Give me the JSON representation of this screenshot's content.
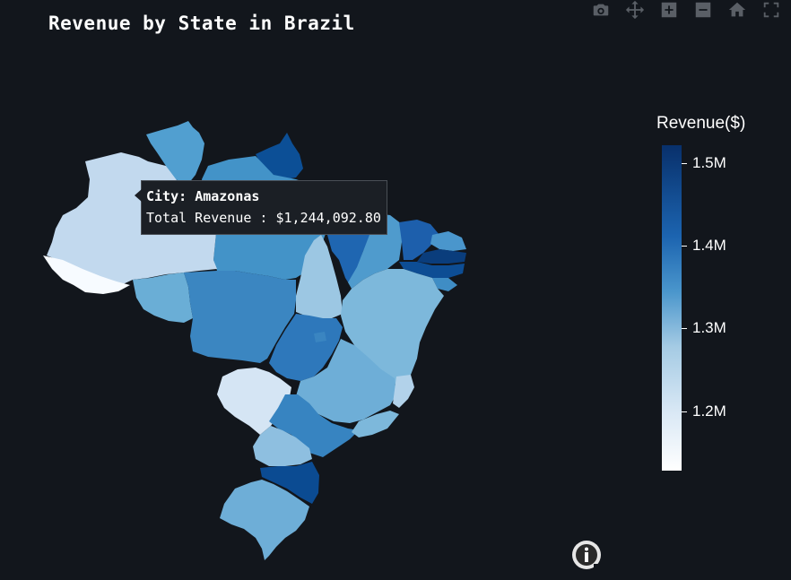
{
  "title": "Revenue by State in Brazil",
  "tooltip": {
    "line1_key": "City: ",
    "line1_value": "Amazonas",
    "line2_key": "Total Revenue : ",
    "line2_value": "$1,244,092.80"
  },
  "colorbar": {
    "title": "Revenue($)",
    "ticks": [
      "1.5M",
      "1.4M",
      "1.3M",
      "1.2M"
    ],
    "colorscale": [
      "#ffffff",
      "#d9e8f5",
      "#a5cbe4",
      "#4a96cc",
      "#1c64b0",
      "#08306b"
    ]
  },
  "modebar": [
    "camera-icon",
    "pan-icon",
    "zoom-in-icon",
    "zoom-out-icon",
    "home-icon",
    "fullscreen-icon"
  ]
}
